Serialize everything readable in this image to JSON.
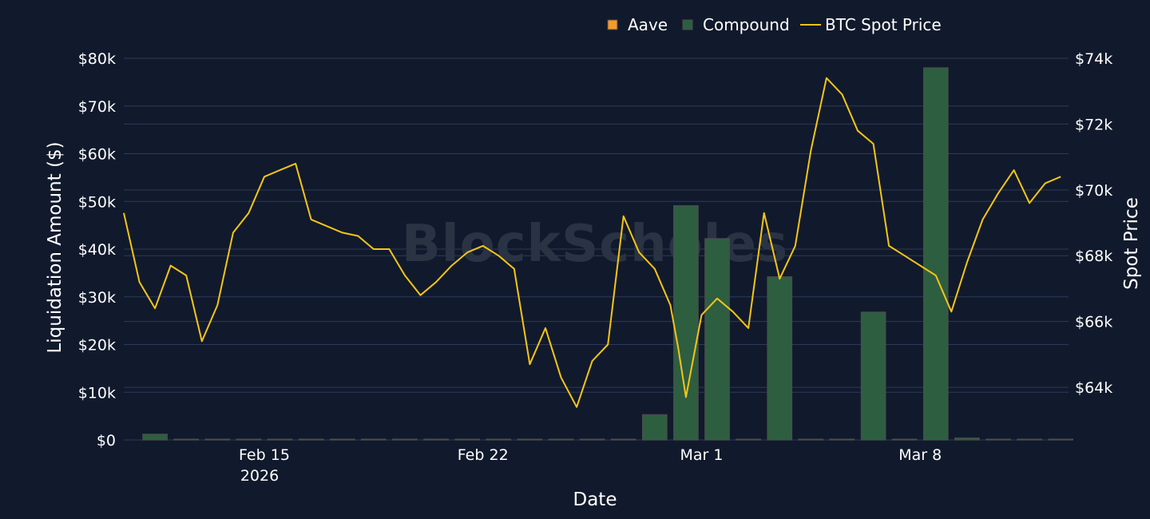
{
  "watermark": "BlockScholes",
  "chart_data": {
    "type": "bar",
    "xlabel": "Date",
    "ylabel": "Liquidation Amount ($)",
    "y2label": "Spot Price",
    "x_ticks": [
      "Feb 15",
      "Feb 22",
      "Mar 1",
      "Mar 8"
    ],
    "x_tick_dates": [
      "2026-02-15",
      "2026-02-22",
      "2026-03-01",
      "2026-03-08"
    ],
    "x_year_label": "2026",
    "xlim": [
      "2026-02-10T12:00",
      "2026-03-12T18:00"
    ],
    "ylim": [
      0,
      80000
    ],
    "y_ticks": [
      0,
      10000,
      20000,
      30000,
      40000,
      50000,
      60000,
      70000,
      80000
    ],
    "y_tick_labels": [
      "$0",
      "$10k",
      "$20k",
      "$30k",
      "$40k",
      "$50k",
      "$60k",
      "$70k",
      "$80k"
    ],
    "y2lim": [
      62400,
      74000
    ],
    "y2_ticks": [
      64000,
      66000,
      68000,
      70000,
      72000,
      74000
    ],
    "y2_tick_labels": [
      "$64k",
      "$66k",
      "$68k",
      "$70k",
      "$72k",
      "$74k"
    ],
    "grid": true,
    "legend_position": "top",
    "colors": {
      "background": "#111a2c",
      "grid": "#2b3a5c",
      "aave": "#f59b2a",
      "compound": "#2e5e40",
      "compound_border": "#4c4c4c",
      "btc": "#f5c518"
    },
    "legend": [
      {
        "name": "Aave",
        "kind": "square",
        "color": "#f59b2a"
      },
      {
        "name": "Compound",
        "kind": "square",
        "color": "#2e5e40"
      },
      {
        "name": "BTC Spot Price",
        "kind": "line",
        "color": "#f5c518"
      }
    ],
    "series": [
      {
        "name": "Aave",
        "type": "bar",
        "x": [],
        "values": []
      },
      {
        "name": "Compound",
        "type": "bar",
        "x": [
          "2026-02-11",
          "2026-02-12",
          "2026-02-13",
          "2026-02-14",
          "2026-02-15",
          "2026-02-16",
          "2026-02-17",
          "2026-02-18",
          "2026-02-19",
          "2026-02-20",
          "2026-02-21",
          "2026-02-22",
          "2026-02-23",
          "2026-02-24",
          "2026-02-25",
          "2026-02-26",
          "2026-02-27",
          "2026-02-28",
          "2026-03-01",
          "2026-03-02",
          "2026-03-03",
          "2026-03-04",
          "2026-03-05",
          "2026-03-06",
          "2026-03-07",
          "2026-03-08",
          "2026-03-09",
          "2026-03-10",
          "2026-03-11",
          "2026-03-12"
        ],
        "values": [
          1200,
          0,
          0,
          0,
          0,
          0,
          0,
          0,
          0,
          0,
          0,
          0,
          0,
          0,
          0,
          0,
          5300,
          49100,
          42200,
          0,
          34200,
          0,
          0,
          26800,
          0,
          78000,
          400,
          0,
          0,
          0
        ]
      },
      {
        "name": "BTC Spot Price",
        "type": "line",
        "axis": "y2",
        "x": [
          "2026-02-10T12:00",
          "2026-02-11T00:00",
          "2026-02-11T12:00",
          "2026-02-12T00:00",
          "2026-02-12T12:00",
          "2026-02-13T00:00",
          "2026-02-13T12:00",
          "2026-02-14T00:00",
          "2026-02-14T12:00",
          "2026-02-15T00:00",
          "2026-02-15T12:00",
          "2026-02-16T00:00",
          "2026-02-16T12:00",
          "2026-02-17T00:00",
          "2026-02-17T12:00",
          "2026-02-18T00:00",
          "2026-02-18T12:00",
          "2026-02-19T00:00",
          "2026-02-19T12:00",
          "2026-02-20T00:00",
          "2026-02-20T12:00",
          "2026-02-21T00:00",
          "2026-02-21T12:00",
          "2026-02-22T00:00",
          "2026-02-22T12:00",
          "2026-02-23T00:00",
          "2026-02-23T12:00",
          "2026-02-24T00:00",
          "2026-02-24T12:00",
          "2026-02-25T00:00",
          "2026-02-25T12:00",
          "2026-02-26T00:00",
          "2026-02-26T12:00",
          "2026-02-27T00:00",
          "2026-02-27T12:00",
          "2026-02-28T00:00",
          "2026-02-28T06:00",
          "2026-02-28T12:00",
          "2026-03-01T00:00",
          "2026-03-01T12:00",
          "2026-03-02T00:00",
          "2026-03-02T12:00",
          "2026-03-03T00:00",
          "2026-03-03T12:00",
          "2026-03-04T00:00",
          "2026-03-04T12:00",
          "2026-03-05T00:00",
          "2026-03-05T12:00",
          "2026-03-06T00:00",
          "2026-03-06T12:00",
          "2026-03-07T00:00",
          "2026-03-07T12:00",
          "2026-03-08T00:00",
          "2026-03-08T12:00",
          "2026-03-09T00:00",
          "2026-03-09T12:00",
          "2026-03-10T00:00",
          "2026-03-10T12:00",
          "2026-03-11T00:00",
          "2026-03-11T12:00",
          "2026-03-12T00:00",
          "2026-03-12T12:00"
        ],
        "values": [
          69300,
          67200,
          66400,
          67700,
          67400,
          65400,
          66500,
          68700,
          69300,
          70400,
          70600,
          70800,
          69100,
          68900,
          68700,
          68600,
          68200,
          68200,
          67400,
          66800,
          67200,
          67700,
          68100,
          68300,
          68000,
          67600,
          64700,
          65800,
          64300,
          63400,
          64800,
          65300,
          69200,
          68100,
          67600,
          66500,
          65200,
          63700,
          66200,
          66700,
          66300,
          65800,
          69300,
          67300,
          68300,
          71200,
          73400,
          72900,
          71800,
          71400,
          68300,
          68000,
          67700,
          67400,
          66300,
          67800,
          69100,
          69900,
          70600,
          69600,
          70200,
          70400
        ]
      }
    ]
  }
}
